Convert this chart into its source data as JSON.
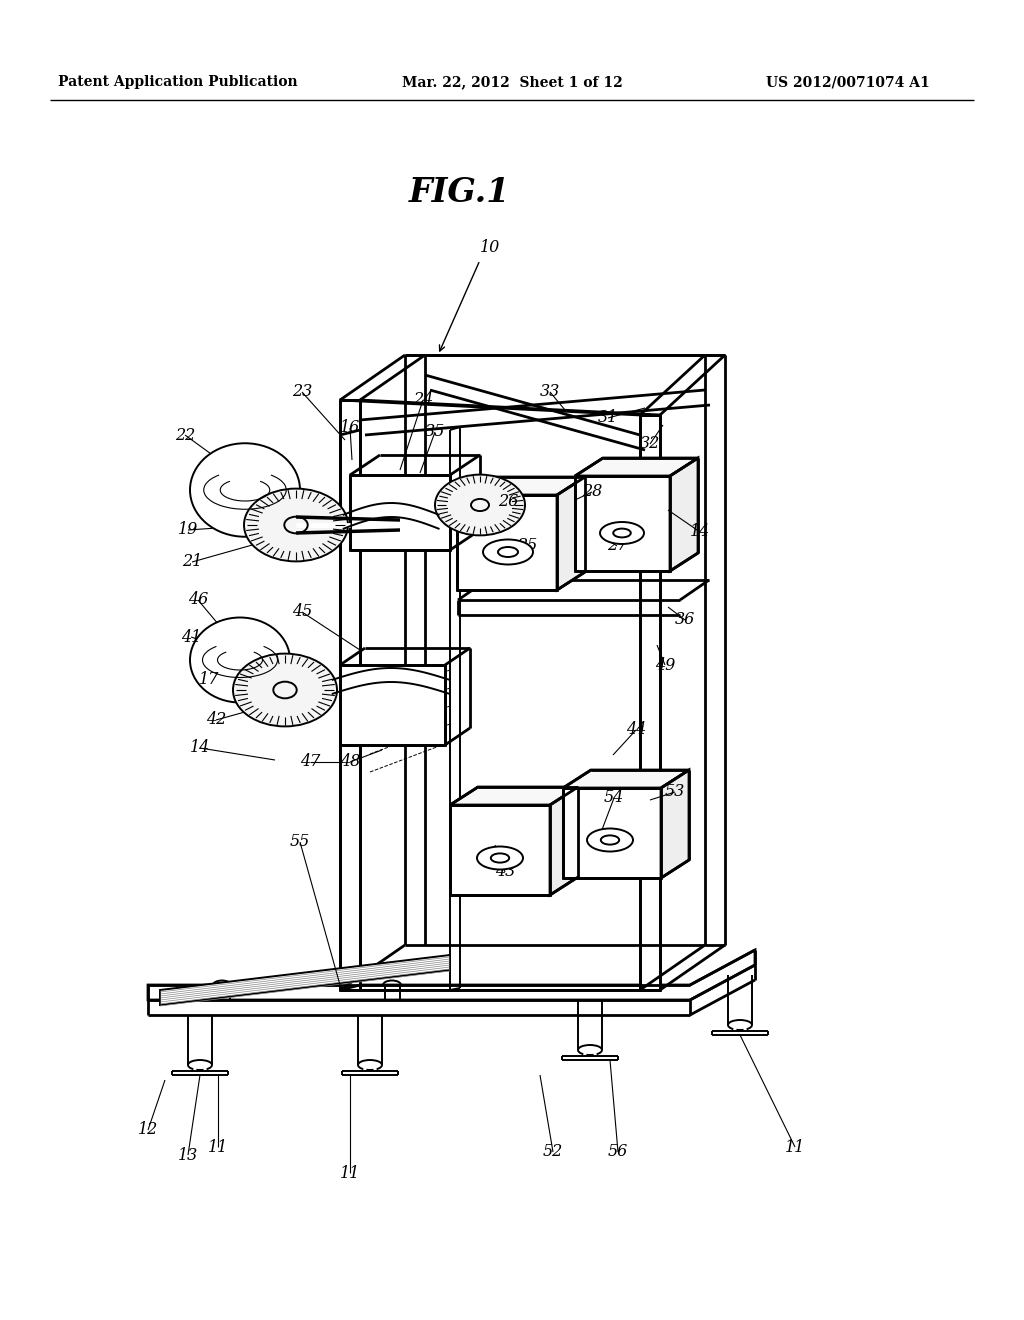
{
  "header_left": "Patent Application Publication",
  "header_center": "Mar. 22, 2012  Sheet 1 of 12",
  "header_right": "US 2012/0071074 A1",
  "title": "FIG.1",
  "bg_color": "#ffffff",
  "lc": "#000000",
  "lw_thick": 2.0,
  "lw_main": 1.4,
  "lw_thin": 0.9,
  "label_fontsize": 11.5
}
